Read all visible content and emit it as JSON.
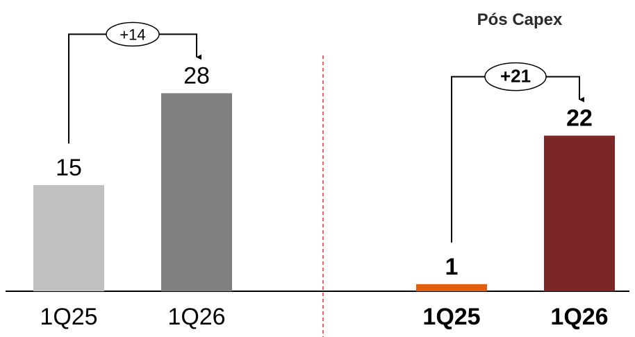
{
  "chart_data": [
    {
      "type": "bar",
      "title": "",
      "categories": [
        "1Q25",
        "1Q26"
      ],
      "values": [
        15,
        28
      ],
      "value_labels": [
        "15",
        "28"
      ],
      "colors": [
        "#c0c0c0",
        "#808080"
      ],
      "delta_label": "+14",
      "bold": false,
      "ylim": [
        0,
        30
      ]
    },
    {
      "type": "bar",
      "title": "Pós Capex",
      "categories": [
        "1Q25",
        "1Q26"
      ],
      "values": [
        1,
        22
      ],
      "value_labels": [
        "1",
        "22"
      ],
      "colors": [
        "#e0600f",
        "#7b2727"
      ],
      "delta_label": "+21",
      "bold": true,
      "ylim": [
        0,
        30
      ]
    }
  ],
  "colors": {
    "divider": "#e03030",
    "axis": "#000000"
  }
}
